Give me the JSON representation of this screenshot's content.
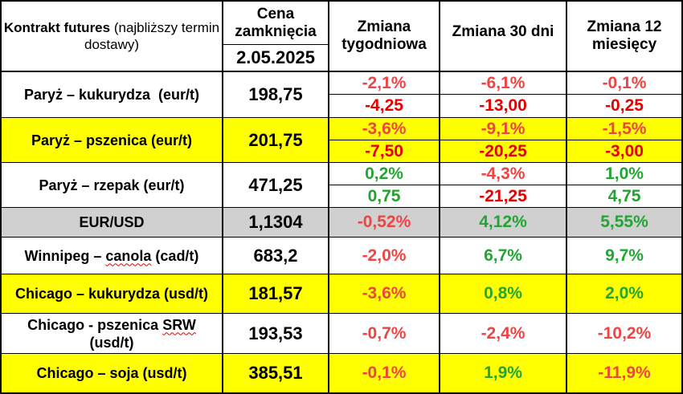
{
  "header": {
    "col1_bold": "Kontrakt futures",
    "col1_normal": "(najbliższy termin dostawy)",
    "col2_title": "Cena zamknięcia",
    "col2_date": "2.05.2025",
    "col3": "Zmiana tygodniowa",
    "col4": "Zmiana 30 dni",
    "col5": "Zmiana 12 miesięcy"
  },
  "rows": [
    {
      "name": "Paryż – kukurydza  (eur/t)",
      "price": "198,75",
      "weekly_pct": "-2,1%",
      "weekly_abs": "-4,25",
      "d30_pct": "-6,1%",
      "d30_abs": "-13,00",
      "m12_pct": "-0,1%",
      "m12_abs": "-0,25"
    },
    {
      "name": "Paryż – pszenica (eur/t)",
      "price": "201,75",
      "weekly_pct": "-3,6%",
      "weekly_abs": "-7,50",
      "d30_pct": "-9,1%",
      "d30_abs": "-20,25",
      "m12_pct": "-1,5%",
      "m12_abs": "-3,00"
    },
    {
      "name": "Paryż – rzepak (eur/t)",
      "price": "471,25",
      "weekly_pct": "0,2%",
      "weekly_abs": "0,75",
      "d30_pct": "-4,3%",
      "d30_abs": "-21,25",
      "m12_pct": "1,0%",
      "m12_abs": "4,75"
    },
    {
      "name": "EUR/USD",
      "price": "1,1304",
      "weekly_pct": "-0,52%",
      "d30_pct": "4,12%",
      "m12_pct": "5,55%"
    },
    {
      "name_a": "Winnipeg – ",
      "name_b": "canola",
      "name_c": " (cad/t)",
      "price": "683,2",
      "weekly_pct": "-2,0%",
      "d30_pct": "6,7%",
      "m12_pct": "9,7%"
    },
    {
      "name": "Chicago – kukurydza (usd/t)",
      "price": "181,57",
      "weekly_pct": "-3,6%",
      "d30_pct": "0,8%",
      "m12_pct": "2,0%"
    },
    {
      "name_a": "Chicago - pszenica ",
      "name_b": "SRW",
      "name_c": "(usd/t)",
      "price": "193,53",
      "weekly_pct": "-0,7%",
      "d30_pct": "-2,4%",
      "m12_pct": "-10,2%"
    },
    {
      "name": "Chicago – soja (usd/t)",
      "price": "385,51",
      "weekly_pct": "-0,1%",
      "d30_pct": "1,9%",
      "m12_pct": "-11,9%"
    }
  ],
  "colors": {
    "negative": "#ee4444",
    "positive": "#23a535",
    "highlight": "#ffff00",
    "eurusd_bg": "#d0d0d0"
  }
}
